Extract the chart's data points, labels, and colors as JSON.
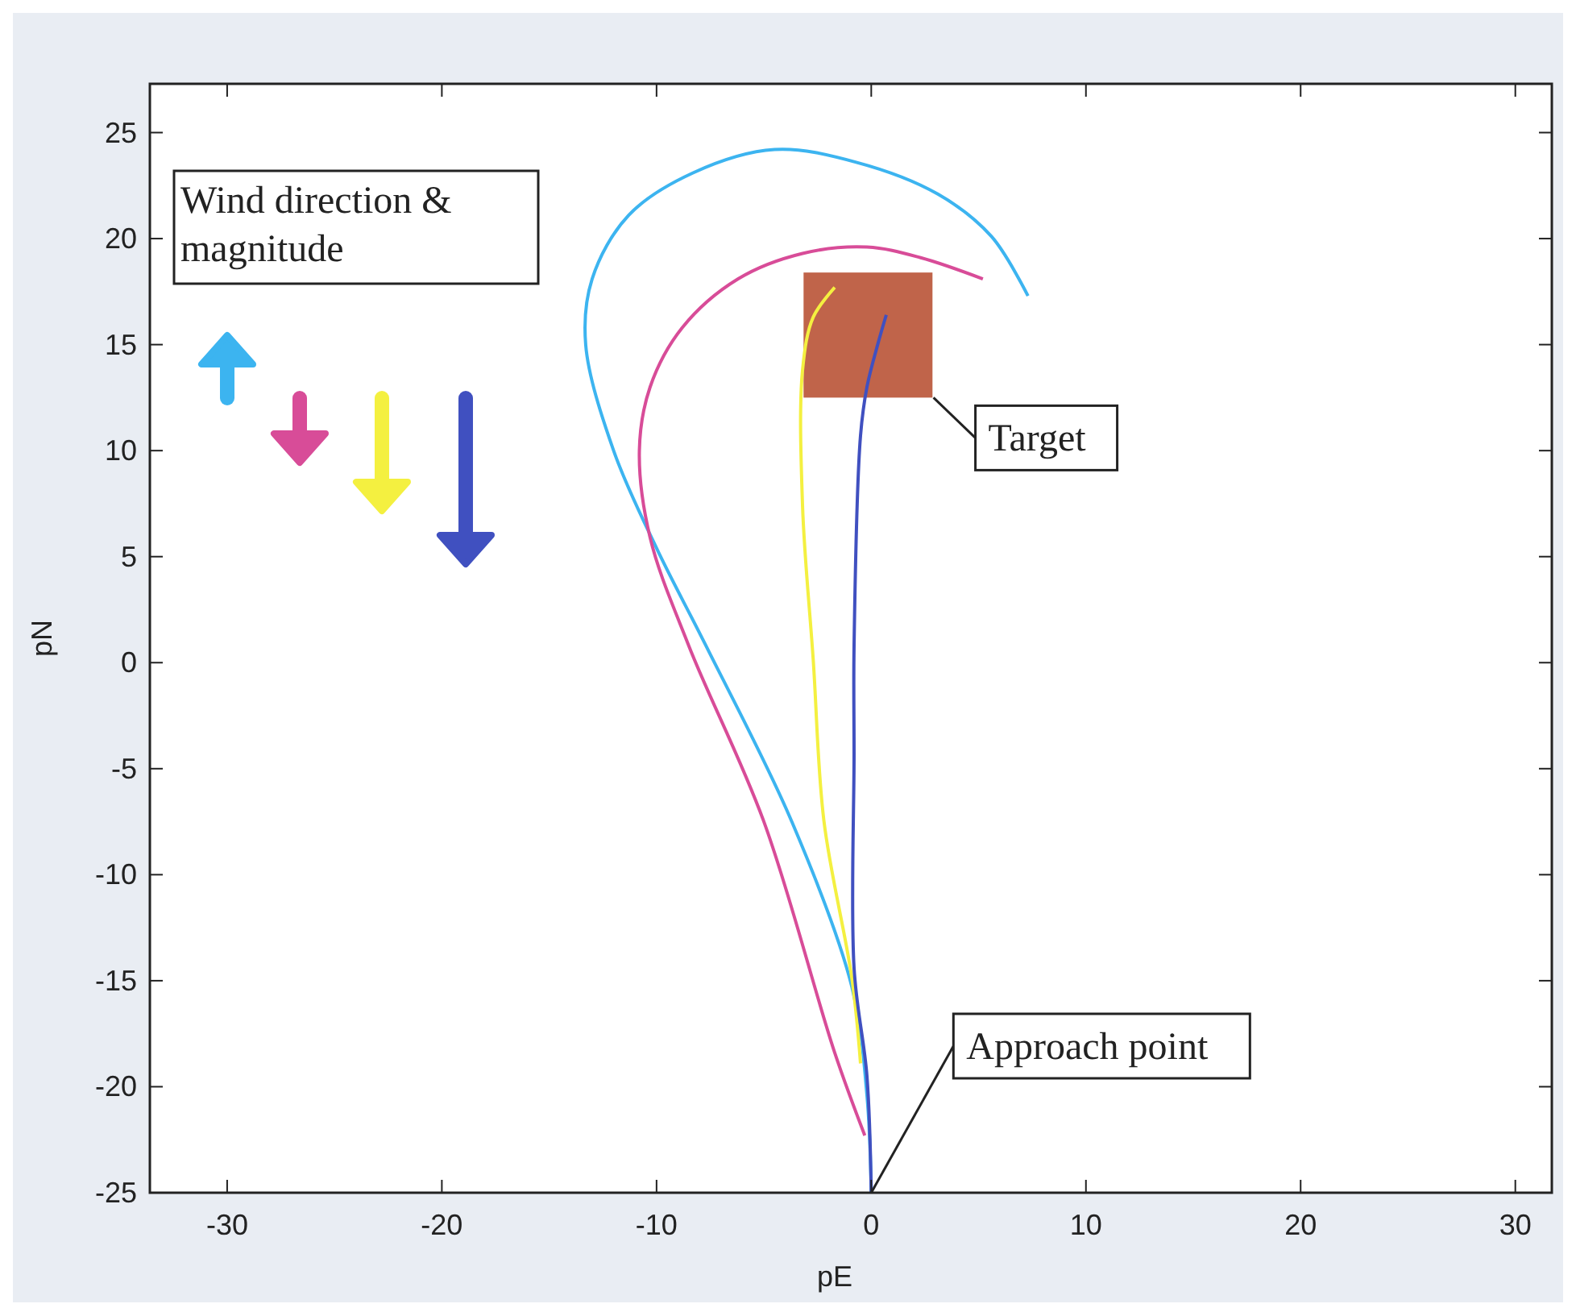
{
  "chart_data": {
    "type": "line",
    "xlabel": "pE",
    "ylabel": "pN",
    "xlim": [
      -33.6,
      31.7
    ],
    "ylim": [
      -25,
      27.3
    ],
    "xticks": [
      -30,
      -20,
      -10,
      0,
      10,
      20,
      30
    ],
    "yticks": [
      -25,
      -20,
      -15,
      -10,
      -5,
      0,
      5,
      10,
      15,
      20,
      25
    ],
    "grid": false,
    "series": [
      {
        "color": "#3cb4f0",
        "x": [
          0,
          -0.2,
          -0.9,
          -3.7,
          -7.7,
          -10,
          -12,
          -13.3,
          -13,
          -11.3,
          -8.3,
          -4.5,
          -0.7,
          3.1,
          5.6,
          7.3
        ],
        "values": [
          -25,
          -20.4,
          -15.3,
          -7.5,
          0.8,
          5.4,
          10,
          15,
          18.1,
          21.1,
          23.1,
          24.2,
          23.6,
          22.1,
          20.1,
          17.3
        ]
      },
      {
        "color": "#d84c98",
        "x": [
          -0.3,
          -1.7,
          -5,
          -8.5,
          -10.3,
          -10.8,
          -10.3,
          -8.8,
          -6.2,
          -3.2,
          -0.2,
          2.3,
          5.2
        ],
        "values": [
          -22.3,
          -18.4,
          -7.5,
          0.8,
          5.9,
          10,
          13,
          15.8,
          18.1,
          19.3,
          19.6,
          19.1,
          18.1
        ]
      },
      {
        "color": "#f4f040",
        "x": [
          -0.5,
          -0.9,
          -2.2,
          -2.7,
          -3.2,
          -3.2,
          -2.7,
          -1.7
        ],
        "values": [
          -18.9,
          -14.9,
          -7.5,
          0.1,
          7.4,
          13.8,
          16.3,
          17.7
        ]
      },
      {
        "type": "bar",
        "color": "#c0644a",
        "x": [
          -0.15
        ],
        "base": [
          12.5
        ],
        "values": [
          5.9
        ]
      },
      {
        "color": "#4050c0",
        "x": [
          0,
          -0.2,
          -0.8,
          -0.8,
          -0.8,
          -0.5,
          -0.2,
          0.3,
          0.7
        ],
        "values": [
          -25,
          -19.5,
          -14.4,
          -4.3,
          0.8,
          10.7,
          13,
          15,
          16.4
        ]
      }
    ],
    "annotations": [
      "Wind direction & magnitude",
      {
        "text": "Target",
        "x": 2.9,
        "y": 12.5
      },
      {
        "text": "Approach point",
        "x": 0,
        "y": -25
      }
    ]
  }
}
